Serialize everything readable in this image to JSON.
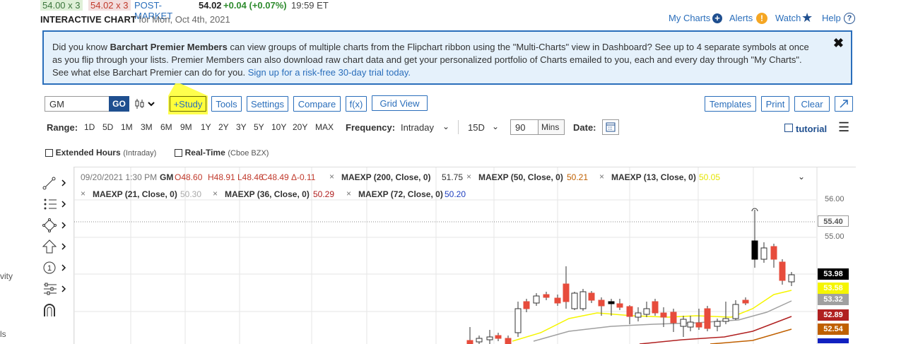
{
  "quote": {
    "bid": "54.00 x 3",
    "ask": "54.02 x 3",
    "session_label": "POST-MARKET",
    "last": "54.02",
    "change": "+0.04 (+0.07%)",
    "time": "19:59 ET"
  },
  "header": {
    "title": "INTERACTIVE CHART",
    "date": "for Mon, Oct 4th, 2021",
    "links": [
      "My Charts",
      "Alerts",
      "Watch",
      "Help"
    ]
  },
  "sidebar": {
    "items": [
      "vity",
      "ls"
    ]
  },
  "banner": {
    "text_1": "Did you know ",
    "bold": "Barchart Premier Members",
    "text_2": " can view groups of multiple charts from the Flipchart ribbon using the \"Multi-Charts\" view in Dashboard? See up to 4 separate symbols at once as you flip through your lists. Premier Members can also download raw chart data and get your personalized portfolio of Charts emailed to you, each and every day through \"My Charts\". See what else Barchart Premier can do for you. ",
    "link": "Sign up for a risk-free 30-day trial today.",
    "close": "✖"
  },
  "toolbar": {
    "symbol": "GM",
    "go": "GO",
    "study": "+Study",
    "tools": "Tools",
    "settings": "Settings",
    "compare": "Compare",
    "fx": "f(x)",
    "grid_view": "Grid View",
    "templates": "Templates",
    "print": "Print",
    "clear": "Clear"
  },
  "range": {
    "label": "Range:",
    "options": [
      "1D",
      "5D",
      "1M",
      "3M",
      "6M",
      "9M",
      "1Y",
      "2Y",
      "3Y",
      "5Y",
      "10Y",
      "20Y",
      "MAX"
    ],
    "frequency_label": "Frequency:",
    "frequency_value": "Intraday",
    "period_value": "15D",
    "interval_value": "90",
    "interval_unit": "Mins",
    "date_label": "Date:",
    "tutorial": "tutorial"
  },
  "options": {
    "extended_hours": "Extended Hours",
    "extended_hours_note": "(Intraday)",
    "realtime": "Real-Time",
    "realtime_note": "(Cboe BZX)"
  },
  "chart_legend": {
    "ohlc_time": "09/20/2021 1:30 PM",
    "symbol": "GM",
    "open": "O48.60",
    "high": "H48.91",
    "low": "L48.46",
    "close": "C48.49",
    "delta": "Δ-0.11",
    "studies": [
      {
        "label": "MAEXP (200, Close, 0)",
        "value": "51.75",
        "color": "#333333"
      },
      {
        "label": "MAEXP (50, Close, 0)",
        "value": "50.21",
        "color": "#c06000"
      },
      {
        "label": "MAEXP (13, Close, 0)",
        "value": "50.05",
        "color": "#f5f500"
      },
      {
        "label": "MAEXP (21, Close, 0)",
        "value": "50.30",
        "color": "#aaaaaa"
      },
      {
        "label": "MAEXP (36, Close, 0)",
        "value": "50.29",
        "color": "#b02020"
      },
      {
        "label": "MAEXP (72, Close, 0)",
        "value": "50.20",
        "color": "#2040c0"
      }
    ]
  },
  "chart_data": {
    "type": "line",
    "y_ticks": [
      "56.00",
      "55.00"
    ],
    "price_tags": [
      {
        "value": "55.40",
        "style": "outline"
      },
      {
        "value": "53.98",
        "color": "#000000"
      },
      {
        "value": "53.58",
        "color": "#f5f500"
      },
      {
        "value": "53.32",
        "color": "#a0a0a0"
      },
      {
        "value": "52.89",
        "color": "#b02020"
      },
      {
        "value": "52.54",
        "color": "#c06000"
      }
    ]
  }
}
